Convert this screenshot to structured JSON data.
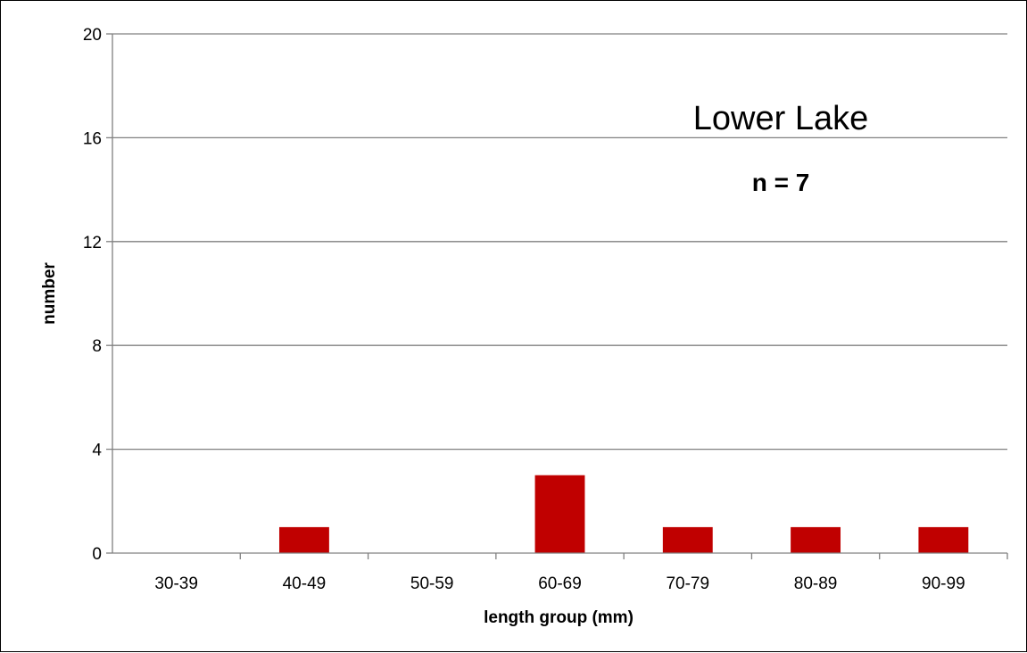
{
  "chart_data": {
    "type": "bar",
    "categories": [
      "30-39",
      "40-49",
      "50-59",
      "60-69",
      "70-79",
      "80-89",
      "90-99"
    ],
    "values": [
      0,
      1,
      0,
      3,
      1,
      1,
      1
    ],
    "xlabel": "length group (mm)",
    "ylabel": "number",
    "ylim": [
      0,
      20
    ],
    "yticks": [
      0,
      4,
      8,
      12,
      16,
      20
    ],
    "grid": true,
    "legend": "none",
    "bar_color": "#C00000",
    "annotations": [
      "Lower Lake",
      "n = 7"
    ]
  }
}
